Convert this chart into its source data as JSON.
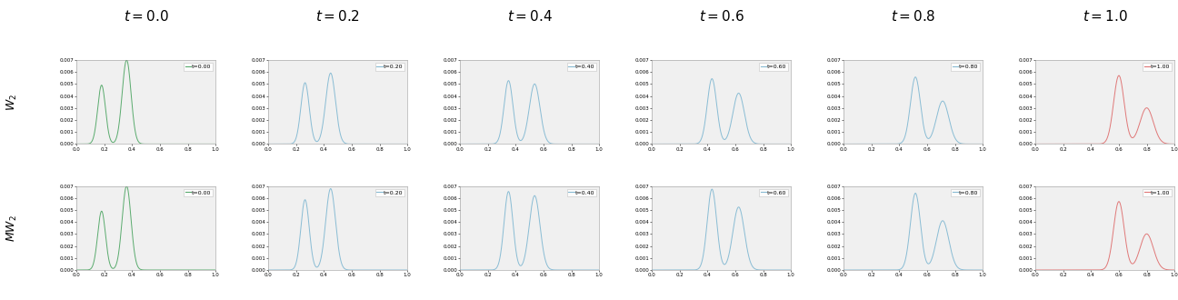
{
  "col_titles": [
    "$t = 0.0$",
    "$t = 0.2$",
    "$t = 0.4$",
    "$t = 0.6$",
    "$t = 0.8$",
    "$t = 1.0$"
  ],
  "row_labels": [
    "$W_2$",
    "$MW_2$"
  ],
  "t_values": [
    0.0,
    0.2,
    0.4,
    0.6,
    0.8,
    1.0
  ],
  "x_range": [
    0.0,
    1.0
  ],
  "x_ticks": [
    0.0,
    0.2,
    0.4,
    0.6,
    0.8,
    1.0
  ],
  "y_range": [
    0.0,
    0.007
  ],
  "y_ticks": [
    0.0,
    0.001,
    0.002,
    0.003,
    0.004,
    0.005,
    0.006,
    0.007
  ],
  "mu0_means": [
    0.18,
    0.36
  ],
  "mu0_stds": [
    0.028,
    0.032
  ],
  "mu0_weights": [
    0.38,
    0.62
  ],
  "mu1_means": [
    0.6,
    0.8
  ],
  "mu1_stds": [
    0.038,
    0.048
  ],
  "mu1_weights": [
    0.6,
    0.4
  ],
  "color_green": "#5aab6e",
  "color_blue": "#89bcd4",
  "color_red": "#e07878",
  "background_color": "#f0f0f0",
  "title_fontsize": 11,
  "legend_fontsize": 4.5,
  "tick_fontsize": 4,
  "row_label_fontsize": 9,
  "figsize": [
    12.96,
    3.3
  ],
  "dpi": 100
}
